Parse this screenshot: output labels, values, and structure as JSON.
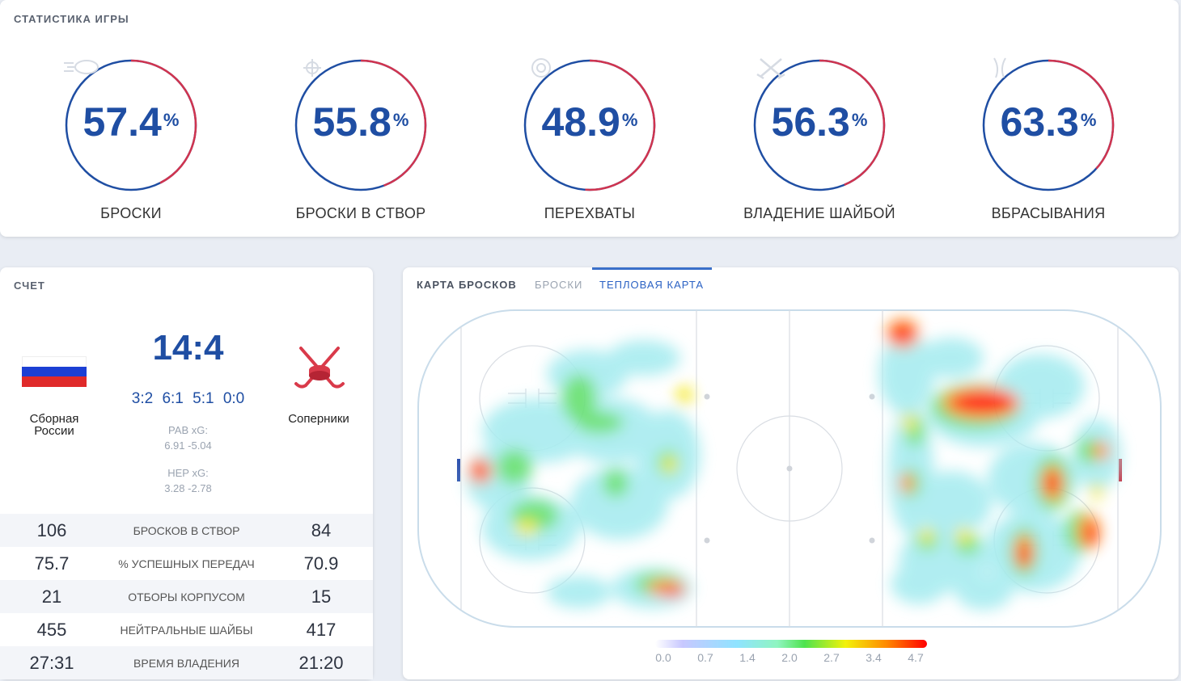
{
  "stats": {
    "title": "СТАТИСТИКА ИГРЫ",
    "items": [
      {
        "value": "57.4",
        "unit": "%",
        "label": "БРОСКИ",
        "icon": "puck-shot-icon"
      },
      {
        "value": "55.8",
        "unit": "%",
        "label": "БРОСКИ В СТВОР",
        "icon": "crosshair-icon"
      },
      {
        "value": "48.9",
        "unit": "%",
        "label": "ПЕРЕХВАТЫ",
        "icon": "target-icon"
      },
      {
        "value": "56.3",
        "unit": "%",
        "label": "ВЛАДЕНИЕ ШАЙБОЙ",
        "icon": "crossed-sticks-icon"
      },
      {
        "value": "63.3",
        "unit": "%",
        "label": "ВБРАСЫВАНИЯ",
        "icon": "faceoff-icon"
      }
    ],
    "colors": {
      "home": "#1f4ea3",
      "away": "#d0344f"
    }
  },
  "score": {
    "title": "СЧЕТ",
    "home_name_line1": "Сборная",
    "home_name_line2": "России",
    "away_name": "Соперники",
    "main": "14:4",
    "periods": "3:2 6:1 5:1 0:0",
    "pab_label": "РАВ xG:",
    "pab_value": "6.91 -5.04",
    "hep_label": "НЕР xG:",
    "hep_value": "3.28 -2.78",
    "rows": [
      {
        "left": "106",
        "label": "БРОСКОВ В СТВОР",
        "right": "84"
      },
      {
        "left": "75.7",
        "label": "% УСПЕШНЫХ ПЕРЕДАЧ",
        "right": "70.9"
      },
      {
        "left": "21",
        "label": "ОТБОРЫ КОРПУСОМ",
        "right": "15"
      },
      {
        "left": "455",
        "label": "НЕЙТРАЛЬНЫЕ ШАЙБЫ",
        "right": "417"
      },
      {
        "left": "27:31",
        "label": "ВРЕМЯ ВЛАДЕНИЯ",
        "right": "21:20"
      }
    ],
    "flag_colors": [
      "#ffffff",
      "#1c3fd4",
      "#e02a2a"
    ],
    "away_logo": "crossed-hockey-sticks-logo"
  },
  "shot_map": {
    "title": "КАРТА БРОСКОВ",
    "tabs": [
      "БРОСКИ",
      "ТЕПЛОВАЯ КАРТА"
    ],
    "active_tab": "ТЕПЛОВАЯ КАРТА",
    "legend_ticks": [
      "0.0",
      "0.7",
      "1.4",
      "2.0",
      "2.7",
      "3.4",
      "4.7"
    ]
  }
}
